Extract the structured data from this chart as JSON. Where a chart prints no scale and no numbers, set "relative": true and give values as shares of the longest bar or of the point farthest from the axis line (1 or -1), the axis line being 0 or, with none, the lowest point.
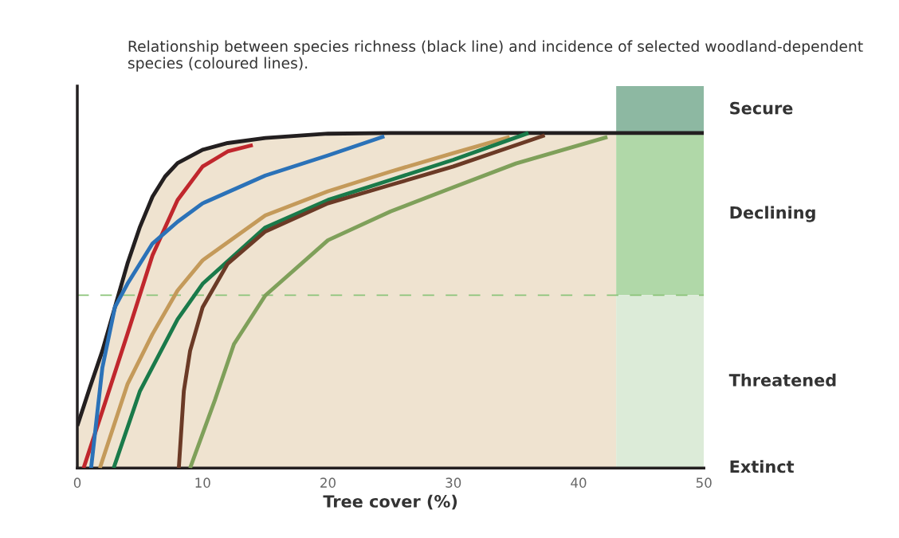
{
  "chart_data": {
    "type": "line",
    "relative": true,
    "title": "Relationship between species richness (black line) and incidence of selected woodland-dependent species (coloured lines).",
    "xlabel": "Tree cover (%)",
    "xlim": [
      0,
      50
    ],
    "xticks": [
      0,
      10,
      20,
      30,
      40,
      50
    ],
    "legend": false,
    "grid": false,
    "series": [
      {
        "color": "#231f20",
        "x": [
          0,
          1,
          2,
          3,
          4,
          5,
          6,
          7,
          8,
          10,
          12,
          15,
          20,
          25,
          50
        ],
        "values": [
          0.126,
          0.24,
          0.35,
          0.48,
          0.61,
          0.72,
          0.81,
          0.87,
          0.91,
          0.95,
          0.97,
          0.985,
          0.998,
          1,
          1
        ]
      },
      {
        "color": "#c0272d",
        "x": [
          0.5,
          2,
          4,
          6,
          8,
          10,
          12,
          14
        ],
        "values": [
          0,
          0.17,
          0.4,
          0.635,
          0.8,
          0.9,
          0.945,
          0.964
        ]
      },
      {
        "color": "#2b72b8",
        "x": [
          1.1,
          2,
          3,
          4,
          6,
          8,
          10,
          15,
          20,
          24.5
        ],
        "values": [
          0,
          0.3,
          0.48,
          0.55,
          0.67,
          0.735,
          0.79,
          0.873,
          0.933,
          0.99
        ]
      },
      {
        "color": "#c49a5a",
        "x": [
          1.8,
          4,
          6,
          8,
          10,
          15,
          20,
          25,
          30,
          34.5
        ],
        "values": [
          0,
          0.25,
          0.4,
          0.53,
          0.62,
          0.754,
          0.826,
          0.885,
          0.94,
          0.988
        ]
      },
      {
        "color": "#1a7a4a",
        "x": [
          2.9,
          5,
          8,
          10,
          15,
          20,
          25,
          30,
          36
        ],
        "values": [
          0,
          0.23,
          0.444,
          0.55,
          0.718,
          0.8,
          0.86,
          0.92,
          1
        ]
      },
      {
        "color": "#6b3a26",
        "x": [
          8.1,
          8.5,
          9,
          10,
          12,
          15,
          20,
          25,
          30,
          37.3
        ],
        "values": [
          0,
          0.23,
          0.35,
          0.48,
          0.61,
          0.706,
          0.79,
          0.845,
          0.9,
          0.993
        ]
      },
      {
        "color": "#7fa05a",
        "x": [
          9,
          11,
          12.5,
          15,
          20,
          25,
          30,
          35,
          42.3
        ],
        "values": [
          0,
          0.205,
          0.37,
          0.515,
          0.68,
          0.766,
          0.838,
          0.909,
          0.988
        ]
      }
    ],
    "bands": [
      {
        "axis": "x",
        "from": 0,
        "to": 43,
        "color": "#efe3d0"
      },
      {
        "axis": "y",
        "from": 1,
        "to": 1.14,
        "label": "Secure",
        "color": "#8db8a2"
      },
      {
        "axis": "y",
        "from": 0.516,
        "to": 1,
        "label": "Declining",
        "color": "#b0d8a8"
      },
      {
        "axis": "y",
        "from": 0,
        "to": 0.516,
        "label": "Threatened",
        "color": "#dcebd8"
      }
    ],
    "ref_lines": [
      {
        "axis": "y",
        "value": 0.516,
        "color": "#8cc47a",
        "line_style": "dashed"
      }
    ],
    "annotations": [
      "Extinct"
    ]
  }
}
